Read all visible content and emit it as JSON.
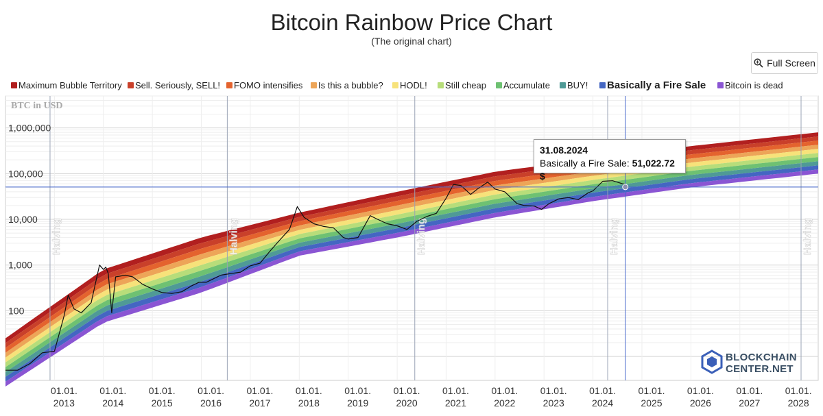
{
  "page": {
    "title": "Bitcoin Rainbow Price Chart",
    "subtitle": "(The original chart)",
    "full_screen_label": "Full Screen"
  },
  "tooltip": {
    "date": "31.08.2024",
    "band": "Basically a Fire Sale:",
    "value": "51,022.72 $"
  },
  "logo": {
    "line1": "BLOCKCHAIN",
    "line2": "CENTER",
    "line2_suffix": ".NET"
  },
  "colors": {
    "bands": [
      "#b11f1f",
      "#c9402a",
      "#e4632e",
      "#eda558",
      "#f7e27a",
      "#b7dd7a",
      "#6ec172",
      "#4f9a96",
      "#4466c2",
      "#8a55d3"
    ],
    "price_line": "#111111",
    "grid": "#dddddd",
    "halving_line": "#9aa3b5",
    "crosshair": "#4466cc"
  },
  "chart_data": {
    "type": "line",
    "title": "Bitcoin Rainbow Price Chart",
    "subtitle": "(The original chart)",
    "ylabel": "BTC in USD",
    "yscale": "log",
    "ylim": [
      3,
      5000000
    ],
    "xlim": [
      2012.0,
      2028.6
    ],
    "y_ticks": [
      {
        "value": 100,
        "label": "100"
      },
      {
        "value": 1000,
        "label": "1,000"
      },
      {
        "value": 10000,
        "label": "10,000"
      },
      {
        "value": 100000,
        "label": "100,000"
      },
      {
        "value": 1000000,
        "label": "1,000,000"
      }
    ],
    "x_ticks": [
      {
        "year": 2013,
        "l1": "01.01.",
        "l2": "2013"
      },
      {
        "year": 2014,
        "l1": "01.01.",
        "l2": "2014"
      },
      {
        "year": 2015,
        "l1": "01.01.",
        "l2": "2015"
      },
      {
        "year": 2016,
        "l1": "01.01.",
        "l2": "2016"
      },
      {
        "year": 2017,
        "l1": "01.01.",
        "l2": "2017"
      },
      {
        "year": 2018,
        "l1": "01.01.",
        "l2": "2018"
      },
      {
        "year": 2019,
        "l1": "01.01.",
        "l2": "2019"
      },
      {
        "year": 2020,
        "l1": "01.01.",
        "l2": "2020"
      },
      {
        "year": 2021,
        "l1": "01.01.",
        "l2": "2021"
      },
      {
        "year": 2022,
        "l1": "01.01.",
        "l2": "2022"
      },
      {
        "year": 2023,
        "l1": "01.01.",
        "l2": "2023"
      },
      {
        "year": 2024,
        "l1": "01.01.",
        "l2": "2024"
      },
      {
        "year": 2025,
        "l1": "01.01.",
        "l2": "2025"
      },
      {
        "year": 2026,
        "l1": "01.01.",
        "l2": "2026"
      },
      {
        "year": 2027,
        "l1": "01.01.",
        "l2": "2027"
      },
      {
        "year": 2028,
        "l1": "01.01.",
        "l2": "2028"
      }
    ],
    "halvings": [
      {
        "year": 2012.91,
        "label": "Halving"
      },
      {
        "year": 2016.53,
        "label": "Halving"
      },
      {
        "year": 2020.36,
        "label": "Halving"
      },
      {
        "year": 2024.3,
        "label": "Halving"
      },
      {
        "year": 2028.25,
        "label": "Halving"
      }
    ],
    "legend": [
      "Maximum Bubble Territory",
      "Sell. Seriously, SELL!",
      "FOMO intensifies",
      "Is this a bubble?",
      "HODL!",
      "Still cheap",
      "Accumulate",
      "BUY!",
      "Basically a Fire Sale",
      "Bitcoin is dead"
    ],
    "highlighted_band": "Basically a Fire Sale",
    "rainbow_bounds": {
      "years": [
        2012.0,
        2014.0,
        2016.0,
        2018.0,
        2020.0,
        2022.0,
        2024.0,
        2026.0,
        2028.6
      ],
      "top": [
        25,
        800,
        4000,
        14000,
        40000,
        110000,
        210000,
        400000,
        800000
      ],
      "bottom": [
        2.2,
        55,
        250,
        1600,
        4000,
        11000,
        25000,
        50000,
        100000
      ]
    },
    "cursor": {
      "year": 2024.66,
      "value": 51022.72
    },
    "series": [
      {
        "name": "BTC price (USD)",
        "x": [
          2012.0,
          2012.25,
          2012.5,
          2012.75,
          2013.0,
          2013.2,
          2013.28,
          2013.4,
          2013.55,
          2013.75,
          2013.92,
          2014.0,
          2014.05,
          2014.1,
          2014.17,
          2014.25,
          2014.45,
          2014.6,
          2014.8,
          2015.0,
          2015.2,
          2015.4,
          2015.6,
          2015.8,
          2015.95,
          2016.1,
          2016.4,
          2016.6,
          2016.8,
          2017.0,
          2017.2,
          2017.4,
          2017.6,
          2017.8,
          2017.96,
          2018.1,
          2018.3,
          2018.5,
          2018.7,
          2018.9,
          2019.0,
          2019.2,
          2019.45,
          2019.6,
          2019.8,
          2020.0,
          2020.2,
          2020.4,
          2020.6,
          2020.8,
          2021.0,
          2021.15,
          2021.3,
          2021.5,
          2021.65,
          2021.85,
          2022.0,
          2022.2,
          2022.45,
          2022.6,
          2022.8,
          2022.95,
          2023.1,
          2023.3,
          2023.5,
          2023.7,
          2023.9,
          2024.0,
          2024.2,
          2024.4,
          2024.6,
          2024.66
        ],
        "values": [
          5,
          5,
          7,
          12,
          13,
          80,
          220,
          110,
          90,
          150,
          1000,
          800,
          900,
          650,
          90,
          550,
          600,
          550,
          380,
          300,
          250,
          240,
          260,
          350,
          420,
          420,
          600,
          650,
          700,
          960,
          1100,
          2000,
          3500,
          6000,
          19000,
          11000,
          8000,
          7000,
          6500,
          4000,
          3700,
          4000,
          12000,
          10000,
          8000,
          7200,
          6000,
          9000,
          11500,
          13500,
          29000,
          58000,
          55000,
          35000,
          47000,
          65000,
          46000,
          40000,
          22000,
          20000,
          19500,
          16500,
          22000,
          28000,
          30000,
          27000,
          38000,
          42000,
          68000,
          70000,
          60000,
          58000
        ]
      }
    ]
  }
}
